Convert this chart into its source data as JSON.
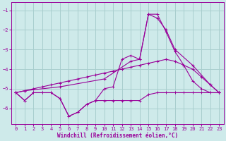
{
  "xlabel": "Windchill (Refroidissement éolien,°C)",
  "background_color": "#ceeaea",
  "grid_color": "#a8cece",
  "line_color": "#990099",
  "xlim": [
    -0.5,
    23.5
  ],
  "ylim": [
    -6.8,
    -0.6
  ],
  "yticks": [
    -6,
    -5,
    -4,
    -3,
    -2,
    -1
  ],
  "xticks": [
    0,
    1,
    2,
    3,
    4,
    5,
    6,
    7,
    8,
    9,
    10,
    11,
    12,
    13,
    14,
    15,
    16,
    17,
    18,
    19,
    20,
    21,
    22,
    23
  ],
  "series": [
    {
      "x": [
        0,
        1,
        2,
        3,
        4,
        5,
        6,
        7,
        8,
        9,
        10,
        11,
        12,
        13,
        14,
        15,
        16,
        17,
        18,
        19,
        20,
        21,
        22,
        23
      ],
      "y": [
        -5.2,
        -5.6,
        -5.2,
        -5.2,
        -5.2,
        -5.5,
        -6.4,
        -6.2,
        -5.8,
        -5.6,
        -5.6,
        -5.6,
        -5.6,
        -5.6,
        -5.6,
        -5.3,
        -5.2,
        -5.2,
        -5.2,
        -5.2,
        -5.2,
        -5.2,
        -5.2,
        -5.2
      ]
    },
    {
      "x": [
        0,
        1,
        2,
        3,
        4,
        5,
        6,
        7,
        8,
        9,
        10,
        11,
        12,
        13,
        14,
        15,
        16,
        17,
        18,
        19,
        20,
        21,
        22,
        23
      ],
      "y": [
        -5.2,
        -5.6,
        -5.2,
        -5.2,
        -5.2,
        -5.5,
        -6.4,
        -6.2,
        -5.8,
        -5.6,
        -5.0,
        -4.9,
        -3.5,
        -3.3,
        -3.5,
        -1.2,
        -1.2,
        -2.1,
        -3.1,
        -3.8,
        -4.6,
        -5.0,
        -5.2,
        -5.2
      ]
    },
    {
      "x": [
        0,
        1,
        2,
        3,
        4,
        5,
        6,
        7,
        8,
        9,
        10,
        11,
        12,
        13,
        14,
        15,
        16,
        17,
        18,
        19,
        20,
        21,
        22,
        23
      ],
      "y": [
        -5.2,
        -5.1,
        -5.0,
        -4.9,
        -4.8,
        -4.7,
        -4.6,
        -4.5,
        -4.4,
        -4.3,
        -4.2,
        -4.1,
        -4.0,
        -3.9,
        -3.8,
        -3.7,
        -3.6,
        -3.5,
        -3.6,
        -3.8,
        -4.0,
        -4.4,
        -4.8,
        -5.2
      ]
    },
    {
      "x": [
        0,
        1,
        5,
        10,
        13,
        14,
        15,
        16,
        17,
        18,
        20,
        22,
        23
      ],
      "y": [
        -5.2,
        -5.1,
        -4.9,
        -4.5,
        -3.6,
        -3.5,
        -1.2,
        -1.4,
        -2.0,
        -3.0,
        -3.8,
        -4.8,
        -5.2
      ]
    }
  ]
}
